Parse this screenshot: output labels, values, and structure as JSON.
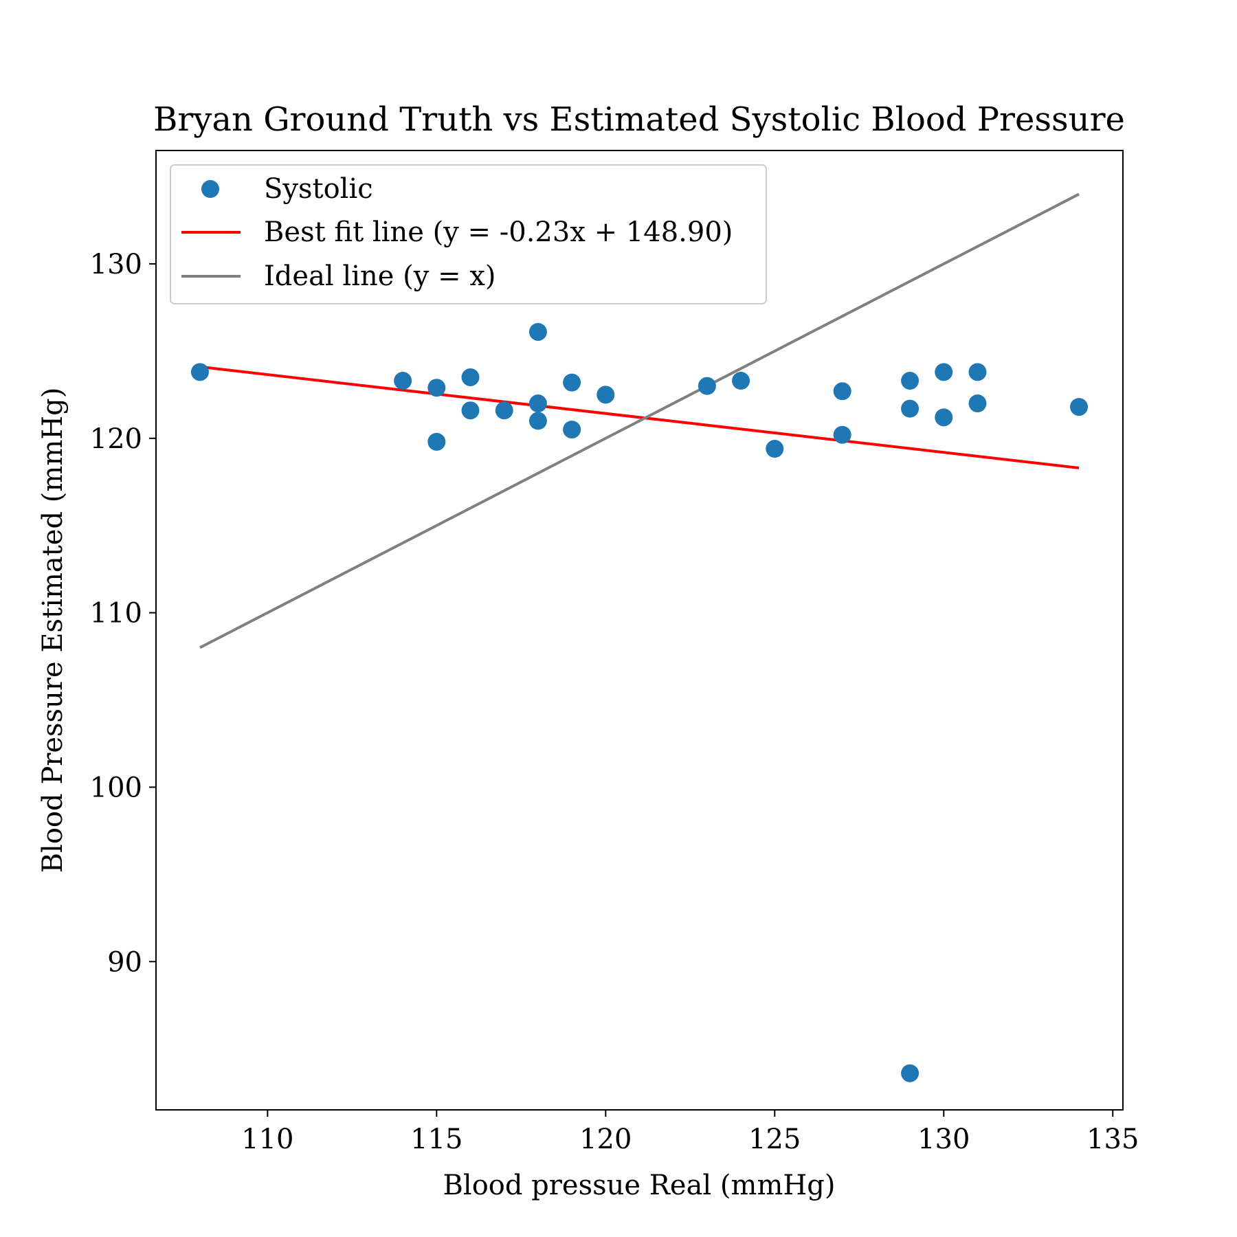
{
  "chart_data": {
    "type": "scatter",
    "title": "Bryan Ground Truth vs Estimated Systolic Blood Pressure",
    "xlabel": "Blood pressue Real (mmHg)",
    "ylabel": "Blood Pressure Estimated (mmHg)",
    "xlim": [
      106.7,
      135.3
    ],
    "ylim": [
      81.5,
      136.5
    ],
    "xticks": [
      110,
      115,
      120,
      125,
      130,
      135
    ],
    "yticks": [
      90,
      100,
      110,
      120,
      130
    ],
    "grid": false,
    "legend_position": "top-left",
    "colors": {
      "points": "#1f77b4",
      "fit_line": "#ff0000",
      "ideal_line": "#808080"
    },
    "series": [
      {
        "name": "Systolic",
        "kind": "scatter",
        "x": [
          108,
          114,
          115,
          115,
          116,
          116,
          117,
          118,
          118,
          118,
          119,
          119,
          120,
          123,
          124,
          125,
          127,
          127,
          129,
          129,
          129,
          130,
          130,
          131,
          131,
          134
        ],
        "y": [
          123.8,
          123.3,
          122.9,
          119.8,
          123.5,
          121.6,
          121.6,
          126.1,
          122.0,
          121.0,
          123.2,
          120.5,
          122.5,
          123.0,
          123.3,
          119.4,
          122.7,
          120.2,
          123.3,
          121.7,
          83.6,
          123.8,
          121.2,
          123.8,
          122.0,
          121.8
        ]
      },
      {
        "name": "Best fit line (y = -0.23x + 148.90)",
        "kind": "line",
        "x": [
          108,
          134
        ],
        "y": [
          124.1,
          118.3
        ]
      },
      {
        "name": "Ideal line (y = x)",
        "kind": "line",
        "x": [
          108,
          134
        ],
        "y": [
          108,
          134
        ]
      }
    ]
  }
}
